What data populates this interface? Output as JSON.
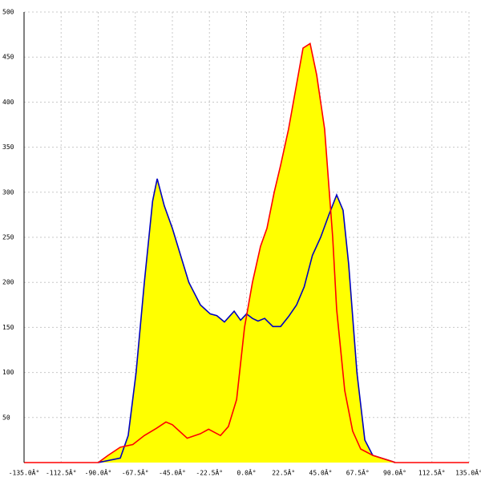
{
  "chart_data": {
    "type": "area",
    "xlim": [
      -135,
      135
    ],
    "ylim": [
      0,
      500
    ],
    "xticks": [
      {
        "value": -135,
        "label": "-135.0Â°"
      },
      {
        "value": -112.5,
        "label": "-112.5Â°"
      },
      {
        "value": -90,
        "label": "-90.0Â°"
      },
      {
        "value": -67.5,
        "label": "-67.5Â°"
      },
      {
        "value": -45,
        "label": "-45.0Â°"
      },
      {
        "value": -22.5,
        "label": "-22.5Â°"
      },
      {
        "value": 0,
        "label": "0.0Â°"
      },
      {
        "value": 22.5,
        "label": "22.5Â°"
      },
      {
        "value": 45,
        "label": "45.0Â°"
      },
      {
        "value": 67.5,
        "label": "67.5Â°"
      },
      {
        "value": 90,
        "label": "90.0Â°"
      },
      {
        "value": 112.5,
        "label": "112.5Â°"
      },
      {
        "value": 135,
        "label": "135.0Â°"
      }
    ],
    "yticks": [
      50,
      100,
      150,
      200,
      250,
      300,
      350,
      400,
      450,
      500
    ],
    "grid": true,
    "fill_color": "#ffff00",
    "series": [
      {
        "color": "#0000c0",
        "x": [
          -90,
          -76.6,
          -71.8,
          -67,
          -62,
          -57,
          -54.2,
          -49.9,
          -45,
          -40,
          -35,
          -28,
          -22,
          -18,
          -13.4,
          -7.5,
          -3.6,
          0,
          3.6,
          7,
          11,
          16,
          20.7,
          25.5,
          30.4,
          35,
          40,
          45,
          50,
          54.7,
          58.6,
          62,
          67,
          71.8,
          76.6,
          88.8,
          90
        ],
        "values": [
          0,
          5,
          30,
          100,
          200,
          290,
          315,
          285,
          260,
          230,
          200,
          175,
          165,
          163,
          156,
          168,
          158,
          165,
          160,
          157,
          160,
          151,
          151,
          162,
          175,
          195,
          230,
          250,
          275,
          297,
          280,
          220,
          100,
          25,
          8,
          1,
          0
        ]
      },
      {
        "color": "#ff0000",
        "x": [
          -135,
          -90,
          -84,
          -76.6,
          -69,
          -62,
          -54.7,
          -48.9,
          -45,
          -36,
          -28,
          -23,
          -15.8,
          -11,
          -6,
          -1.2,
          3.6,
          8.5,
          12.4,
          16.8,
          20.7,
          25.5,
          30.4,
          34.3,
          38.6,
          42.6,
          47.4,
          52.3,
          54.7,
          59.6,
          64.4,
          69.3,
          76.6,
          88.8,
          90,
          135
        ],
        "values": [
          0,
          0,
          8,
          17,
          20,
          30,
          38,
          45,
          42,
          27,
          32,
          37,
          30,
          40,
          70,
          150,
          200,
          240,
          260,
          300,
          330,
          370,
          420,
          460,
          465,
          430,
          370,
          250,
          170,
          80,
          35,
          15,
          8,
          1,
          0,
          0
        ]
      }
    ]
  }
}
